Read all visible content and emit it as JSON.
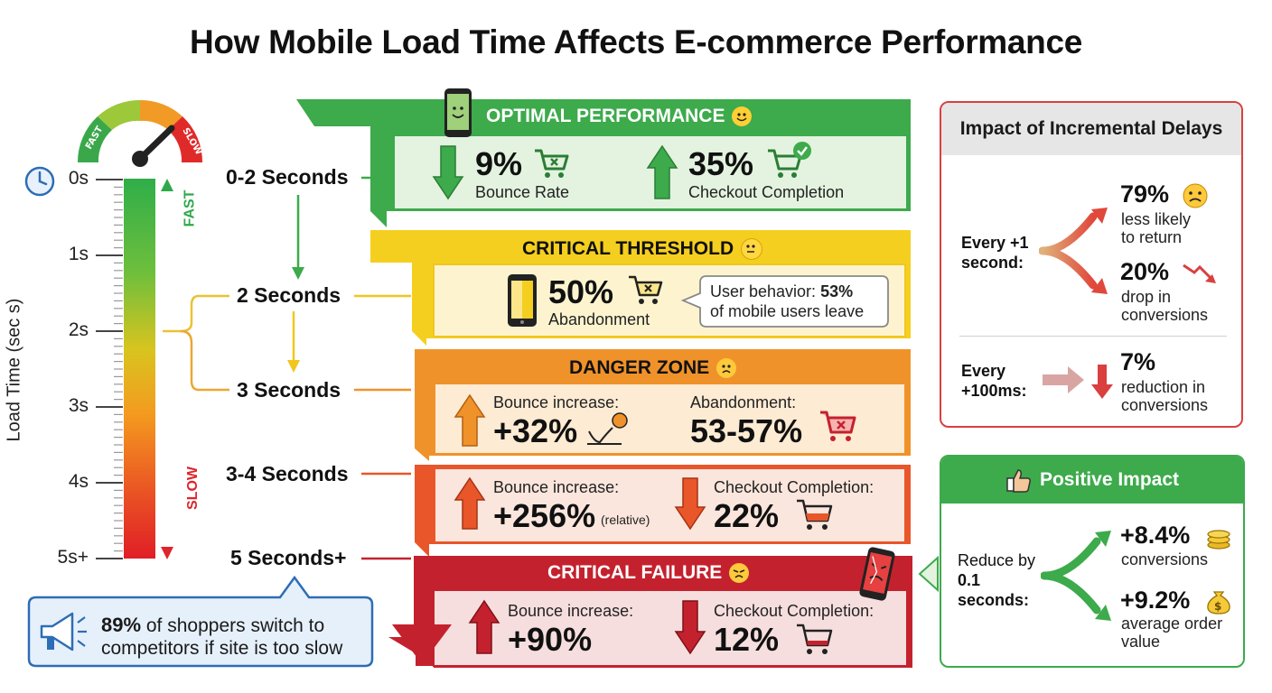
{
  "title": "How Mobile Load Time Affects E-commerce Performance",
  "gauge": {
    "fast_label": "FAST",
    "slow_label": "SLOW"
  },
  "axis": {
    "label": "Load Time (sec s)",
    "ticks": [
      "0s",
      "1s",
      "2s",
      "3s",
      "4s",
      "5s+"
    ],
    "fast_label": "FAST",
    "slow_label": "SLOW"
  },
  "stages": [
    "0-2 Seconds",
    "2 Seconds",
    "3 Seconds",
    "3-4 Seconds",
    "5 Seconds+"
  ],
  "panels": {
    "optimal": {
      "title": "OPTIMAL PERFORMANCE",
      "m1_value": "9%",
      "m1_label": "Bounce Rate",
      "m2_value": "35%",
      "m2_label": "Checkout Completion"
    },
    "critical": {
      "title": "CRITICAL THRESHOLD",
      "value": "50%",
      "label": "Abandonment",
      "note_prefix": "User behavior: ",
      "note_bold": "53%",
      "note_rest": "of mobile users leave"
    },
    "danger": {
      "title": "DANGER ZONE",
      "m1_label": "Bounce increase:",
      "m1_value": "+32%",
      "m2_label": "Abandonment:",
      "m2_value": "53-57%"
    },
    "severe": {
      "m1_label": "Bounce increase:",
      "m1_value": "+256%",
      "m1_note": "(relative)",
      "m2_label": "Checkout Completion:",
      "m2_value": "22%"
    },
    "failure": {
      "title": "CRITICAL FAILURE",
      "m1_label": "Bounce increase:",
      "m1_value": "+90%",
      "m2_label": "Checkout Completion:",
      "m2_value": "12%"
    }
  },
  "callout": {
    "bold": "89%",
    "rest_line1": " of shoppers switch to",
    "line2": "competitors if site is too slow"
  },
  "incremental": {
    "title": "Impact of Incremental Delays",
    "row1_label_1": "Every +1",
    "row1_label_2": "second:",
    "r1a_value": "79%",
    "r1a_text_1": "less likely",
    "r1a_text_2": "to return",
    "r1b_value": "20%",
    "r1b_text_1": "drop in",
    "r1b_text_2": "conversions",
    "row2_label_1": "Every",
    "row2_label_2": "+100ms:",
    "r2_value": "7%",
    "r2_text_1": "reduction in",
    "r2_text_2": "conversions"
  },
  "positive": {
    "title": "Positive Impact",
    "label_1": "Reduce by",
    "label_2": "0.1",
    "label_3": "seconds:",
    "a_value": "+8.4%",
    "a_text": "conversions",
    "b_value": "+9.2%",
    "b_text_1": "average order",
    "b_text_2": "value"
  },
  "colors": {
    "green": "#3daa4c",
    "yellow": "#f5cf1f",
    "orange": "#f0922a",
    "red_orange": "#e8562a",
    "red": "#c4212e"
  }
}
